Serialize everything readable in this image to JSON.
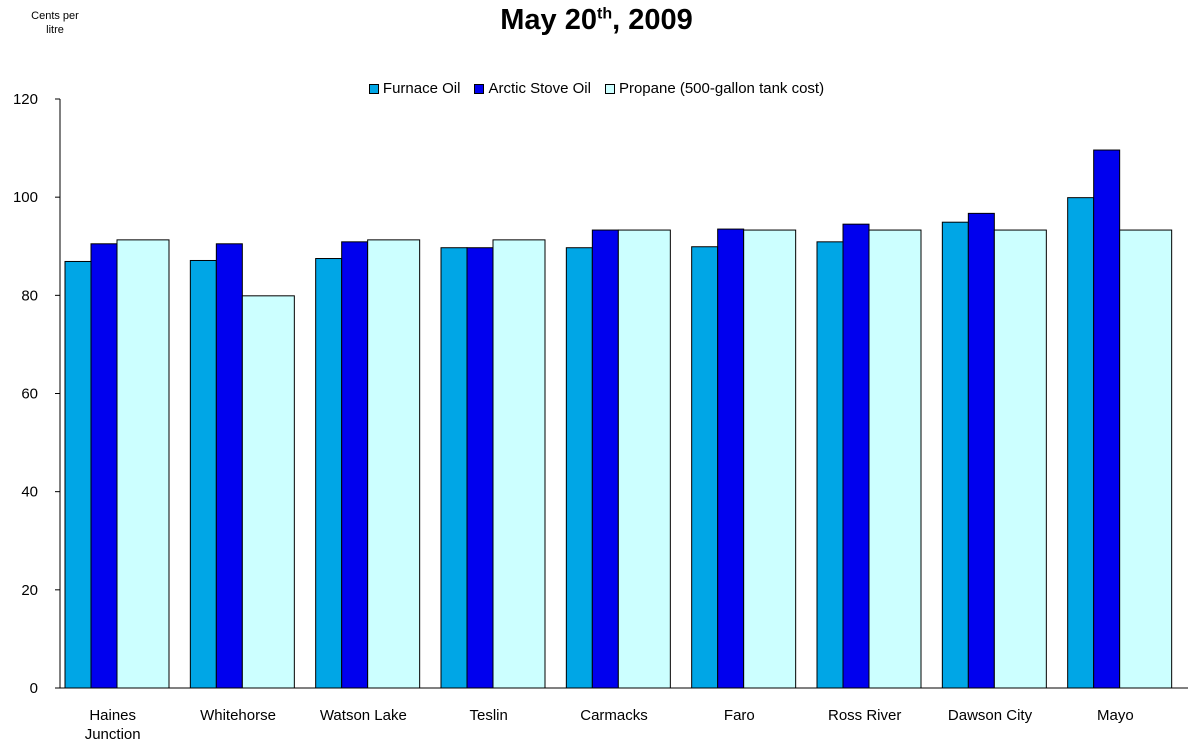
{
  "ylabel": "Cents per\nlitre",
  "title_main": "May 20",
  "title_sup": "th",
  "title_tail": ", 2009",
  "chart_data": {
    "type": "bar",
    "categories": [
      "Haines\nJunction",
      "Whitehorse",
      "Watson Lake",
      "Teslin",
      "Carmacks",
      "Faro",
      "Ross River",
      "Dawson City",
      "Mayo"
    ],
    "series": [
      {
        "name": "Furnace Oil",
        "color": "#00a6e6",
        "values": [
          86.9,
          87.1,
          87.5,
          89.7,
          89.7,
          89.9,
          90.9,
          94.9,
          99.9
        ]
      },
      {
        "name": "Arctic Stove Oil",
        "color": "#0000ee",
        "values": [
          90.5,
          90.5,
          90.9,
          89.7,
          93.3,
          93.5,
          94.5,
          96.7,
          109.6
        ]
      },
      {
        "name": "Propane (500-gallon tank cost)",
        "color": "#ccffff",
        "values": [
          91.3,
          79.9,
          91.3,
          91.3,
          93.3,
          93.3,
          93.3,
          93.3,
          93.3
        ]
      }
    ],
    "yticks": [
      0,
      20,
      40,
      60,
      80,
      100,
      120
    ],
    "ylim": [
      0,
      120
    ],
    "legend_position": "top"
  }
}
